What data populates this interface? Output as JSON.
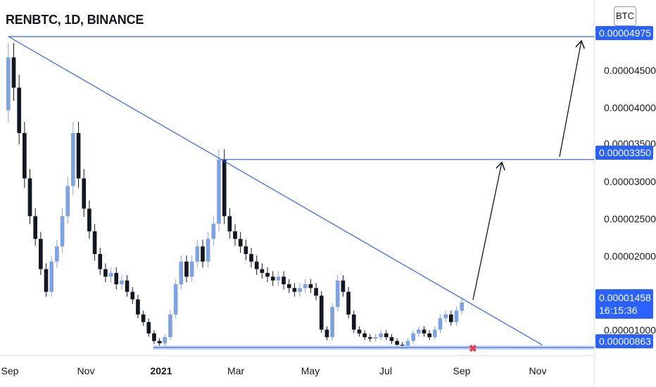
{
  "header": {
    "title": "RENBTC, 1D, BINANCE",
    "currency": "BTC"
  },
  "chart_data": {
    "type": "candlestick",
    "symbol": "RENBTC",
    "interval": "1D",
    "exchange": "BINANCE",
    "y_ticks": [
      "0.00004500",
      "0.00004000",
      "0.00003500",
      "0.00003000",
      "0.00002500",
      "0.00002000",
      "0.00001000"
    ],
    "x_ticks": [
      "Sep",
      "Nov",
      "2021",
      "Mar",
      "May",
      "Jul",
      "Sep",
      "Nov"
    ],
    "levels": [
      {
        "price": "0.00004975",
        "color": "#2962ff"
      },
      {
        "price": "0.00003350",
        "color": "#2962ff"
      },
      {
        "price": "0.00000863",
        "color": "#2962ff"
      }
    ],
    "current_price": "0.00001458",
    "countdown": "16:15:36",
    "candles": [
      [
        4e-05,
        4.7e-05
      ],
      [
        4.7e-05,
        4.3e-05
      ],
      [
        4.3e-05,
        3.7e-05
      ],
      [
        3.7e-05,
        3.1e-05
      ],
      [
        3.1e-05,
        2.6e-05
      ],
      [
        2.6e-05,
        2.3e-05
      ],
      [
        2.3e-05,
        1.9e-05
      ],
      [
        1.9e-05,
        1.6e-05
      ],
      [
        1.6e-05,
        2e-05
      ],
      [
        2e-05,
        2.2e-05
      ],
      [
        2.2e-05,
        2.6e-05
      ],
      [
        2.6e-05,
        3e-05
      ],
      [
        3e-05,
        3.7e-05
      ],
      [
        3.7e-05,
        3.1e-05
      ],
      [
        3.1e-05,
        2.7e-05
      ],
      [
        2.7e-05,
        2.4e-05
      ],
      [
        2.4e-05,
        2.1e-05
      ],
      [
        2.1e-05,
        1.9e-05
      ],
      [
        1.9e-05,
        1.8e-05
      ],
      [
        1.8e-05,
        1.85e-05
      ],
      [
        1.85e-05,
        1.7e-05
      ],
      [
        1.7e-05,
        1.75e-05
      ],
      [
        1.75e-05,
        1.6e-05
      ],
      [
        1.6e-05,
        1.5e-05
      ],
      [
        1.5e-05,
        1.3e-05
      ],
      [
        1.3e-05,
        1.2e-05
      ],
      [
        1.2e-05,
        1.05e-05
      ],
      [
        1.05e-05,
        9.5e-06
      ],
      [
        9.5e-06,
        9.2e-06
      ],
      [
        9.2e-06,
        1e-05
      ],
      [
        1e-05,
        1.3e-05
      ],
      [
        1.3e-05,
        1.7e-05
      ],
      [
        1.7e-05,
        2e-05
      ],
      [
        2e-05,
        1.8e-05
      ],
      [
        1.8e-05,
        2e-05
      ],
      [
        2e-05,
        2.2e-05
      ],
      [
        2.2e-05,
        2e-05
      ],
      [
        2e-05,
        2.3e-05
      ],
      [
        2.3e-05,
        2.5e-05
      ],
      [
        2.5e-05,
        3.35e-05
      ],
      [
        3.35e-05,
        2.6e-05
      ],
      [
        2.6e-05,
        2.4e-05
      ],
      [
        2.4e-05,
        2.3e-05
      ],
      [
        2.3e-05,
        2.2e-05
      ],
      [
        2.2e-05,
        2.1e-05
      ],
      [
        2.1e-05,
        2e-05
      ],
      [
        2e-05,
        1.9e-05
      ],
      [
        1.9e-05,
        1.85e-05
      ],
      [
        1.85e-05,
        1.8e-05
      ],
      [
        1.8e-05,
        1.75e-05
      ],
      [
        1.75e-05,
        1.8e-05
      ],
      [
        1.8e-05,
        1.7e-05
      ],
      [
        1.7e-05,
        1.65e-05
      ],
      [
        1.65e-05,
        1.6e-05
      ],
      [
        1.6e-05,
        1.65e-05
      ],
      [
        1.65e-05,
        1.7e-05
      ],
      [
        1.7e-05,
        1.65e-05
      ],
      [
        1.65e-05,
        1.55e-05
      ],
      [
        1.55e-05,
        1.1e-05
      ],
      [
        1.1e-05,
        1e-05
      ],
      [
        1e-05,
        1.4e-05
      ],
      [
        1.4e-05,
        1.75e-05
      ],
      [
        1.75e-05,
        1.6e-05
      ],
      [
        1.6e-05,
        1.3e-05
      ],
      [
        1.3e-05,
        1.1e-05
      ],
      [
        1.1e-05,
        1.05e-05
      ],
      [
        1.05e-05,
        1e-05
      ],
      [
        1e-05,
        9.8e-06
      ],
      [
        9.8e-06,
        1e-05
      ],
      [
        1e-05,
        1.05e-05
      ],
      [
        1.05e-05,
        1e-05
      ],
      [
        1e-05,
        9.5e-06
      ],
      [
        9.5e-06,
        9e-06
      ],
      [
        9e-06,
        8.8e-06
      ],
      [
        8.8e-06,
        9.5e-06
      ],
      [
        9.5e-06,
        1.05e-05
      ],
      [
        1.05e-05,
        1.1e-05
      ],
      [
        1.1e-05,
        1.05e-05
      ],
      [
        1.05e-05,
        1e-05
      ],
      [
        1e-05,
        1.1e-05
      ],
      [
        1.1e-05,
        1.25e-05
      ],
      [
        1.25e-05,
        1.3e-05
      ],
      [
        1.3e-05,
        1.2e-05
      ],
      [
        1.2e-05,
        1.35e-05
      ],
      [
        1.35e-05,
        1.458e-05
      ]
    ],
    "trendline": {
      "from": [
        "start",
        4.975e-05
      ],
      "to": [
        "end",
        8.63e-06
      ]
    },
    "projections": [
      {
        "from": 1.458e-05,
        "to": 3.35e-05
      },
      {
        "from": 3.35e-05,
        "to": 4.975e-05
      }
    ],
    "ylim": [
      7.6e-06,
      5.18e-05
    ]
  }
}
